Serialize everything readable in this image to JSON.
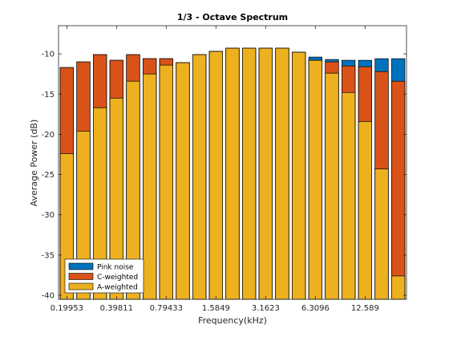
{
  "chart_data": {
    "type": "bar",
    "title": "1/3 - Octave Spectrum",
    "xlabel": "Frequency(kHz)",
    "ylabel": "Average Power (dB)",
    "ylim": [
      -40.5,
      -6.5
    ],
    "yticks": [
      -40,
      -35,
      -30,
      -25,
      -20,
      -15,
      -10
    ],
    "xtick_labels": [
      {
        "index": 0,
        "label": "0.19953"
      },
      {
        "index": 3,
        "label": "0.39811"
      },
      {
        "index": 6,
        "label": "0.79433"
      },
      {
        "index": 9,
        "label": "1.5849"
      },
      {
        "index": 12,
        "label": "3.1623"
      },
      {
        "index": 15,
        "label": "6.3096"
      },
      {
        "index": 18,
        "label": "12.589"
      }
    ],
    "grid": false,
    "legend_position": "bottom-left",
    "baseline": -40.5,
    "series": [
      {
        "name": "Pink noise",
        "color": "#0072BD",
        "values": [
          -11.7,
          -11.0,
          -10.1,
          -10.8,
          -10.1,
          -10.6,
          -10.6,
          -11.1,
          -10.1,
          -9.7,
          -9.3,
          -9.3,
          -9.3,
          -9.3,
          -9.8,
          -10.4,
          -10.7,
          -10.8,
          -10.8,
          -10.6,
          -10.6
        ]
      },
      {
        "name": "C-weighted",
        "color": "#D95319",
        "values": [
          -11.7,
          -11.0,
          -10.1,
          -10.8,
          -10.1,
          -10.6,
          -10.6,
          -11.1,
          -10.1,
          -9.7,
          -9.3,
          -9.3,
          -9.3,
          -9.3,
          -9.8,
          -10.8,
          -11.0,
          -11.5,
          -11.6,
          -12.2,
          -13.4
        ]
      },
      {
        "name": "A-weighted",
        "color": "#EDB120",
        "values": [
          -22.4,
          -19.6,
          -16.7,
          -15.5,
          -13.4,
          -12.5,
          -11.4,
          -11.1,
          -10.1,
          -9.7,
          -9.3,
          -9.3,
          -9.3,
          -9.3,
          -9.8,
          -10.8,
          -12.4,
          -14.8,
          -18.4,
          -24.3,
          -37.6
        ]
      }
    ]
  }
}
